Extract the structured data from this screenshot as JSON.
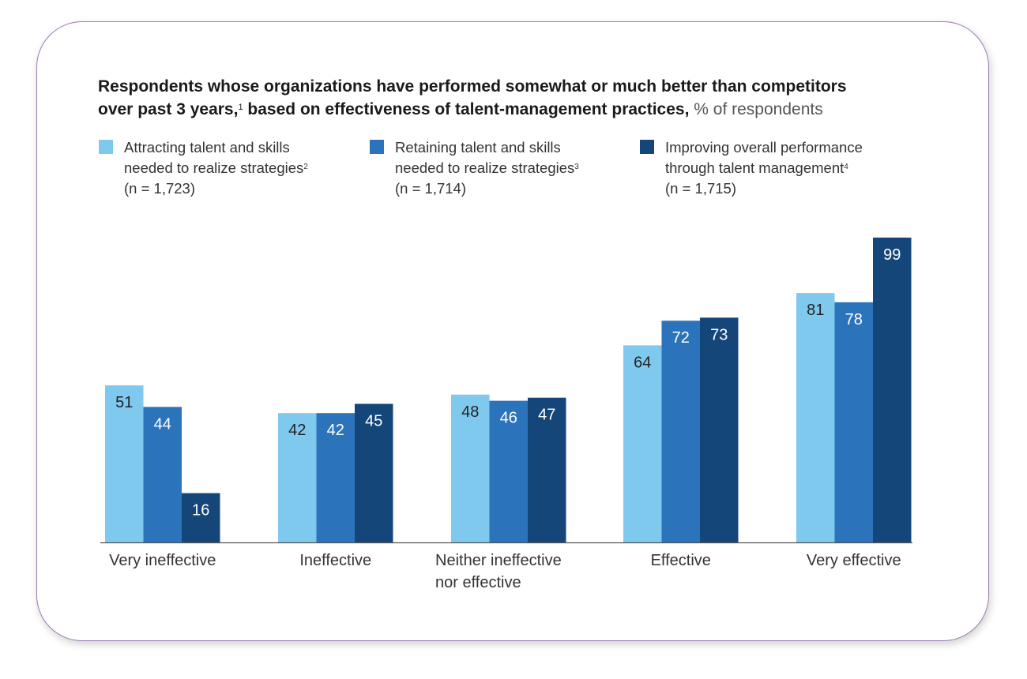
{
  "colors": {
    "series1": "#7fc9ee",
    "series2": "#2b73ba",
    "series3": "#14467a",
    "axis": "#555555",
    "card_border": "#9a7bb0"
  },
  "title": {
    "line1": "Respondents whose organizations have performed somewhat or much better than competitors",
    "line2_a": "over past 3 years,",
    "footnote": "1",
    "line2_b": " based on effectiveness of talent-management practices,",
    "unit": " % of respondents"
  },
  "legend": [
    {
      "line1": "Attracting talent and skills",
      "line2": "needed to realize strategies",
      "sup": "2",
      "line3": "(n = 1,723)",
      "color": "#7fc9ee"
    },
    {
      "line1": "Retaining talent and skills",
      "line2": "needed to realize strategies",
      "sup": "3",
      "line3": "(n = 1,714)",
      "color": "#2b73ba"
    },
    {
      "line1": "Improving overall performance",
      "line2": "through talent management",
      "sup": "4",
      "line3": "(n = 1,715)",
      "color": "#14467a"
    }
  ],
  "chart_data": {
    "type": "bar",
    "title": "Respondents whose organizations have performed somewhat or much better than competitors over past 3 years, based on effectiveness of talent-management practices, % of respondents",
    "xlabel": "",
    "ylabel": "% of respondents",
    "ylim": [
      0,
      100
    ],
    "grid": false,
    "legend_position": "top",
    "categories": [
      [
        "Very ineffective"
      ],
      [
        "Ineffective"
      ],
      [
        "Neither ineffective",
        "nor effective"
      ],
      [
        "Effective"
      ],
      [
        "Very effective"
      ]
    ],
    "series": [
      {
        "name": "Attracting talent and skills needed to realize strategies (n = 1,723)",
        "values": [
          51,
          42,
          48,
          64,
          81
        ]
      },
      {
        "name": "Retaining talent and skills needed to realize strategies (n = 1,714)",
        "values": [
          44,
          42,
          46,
          72,
          78
        ]
      },
      {
        "name": "Improving overall performance through talent management (n = 1,715)",
        "values": [
          16,
          45,
          47,
          73,
          99
        ]
      }
    ]
  }
}
